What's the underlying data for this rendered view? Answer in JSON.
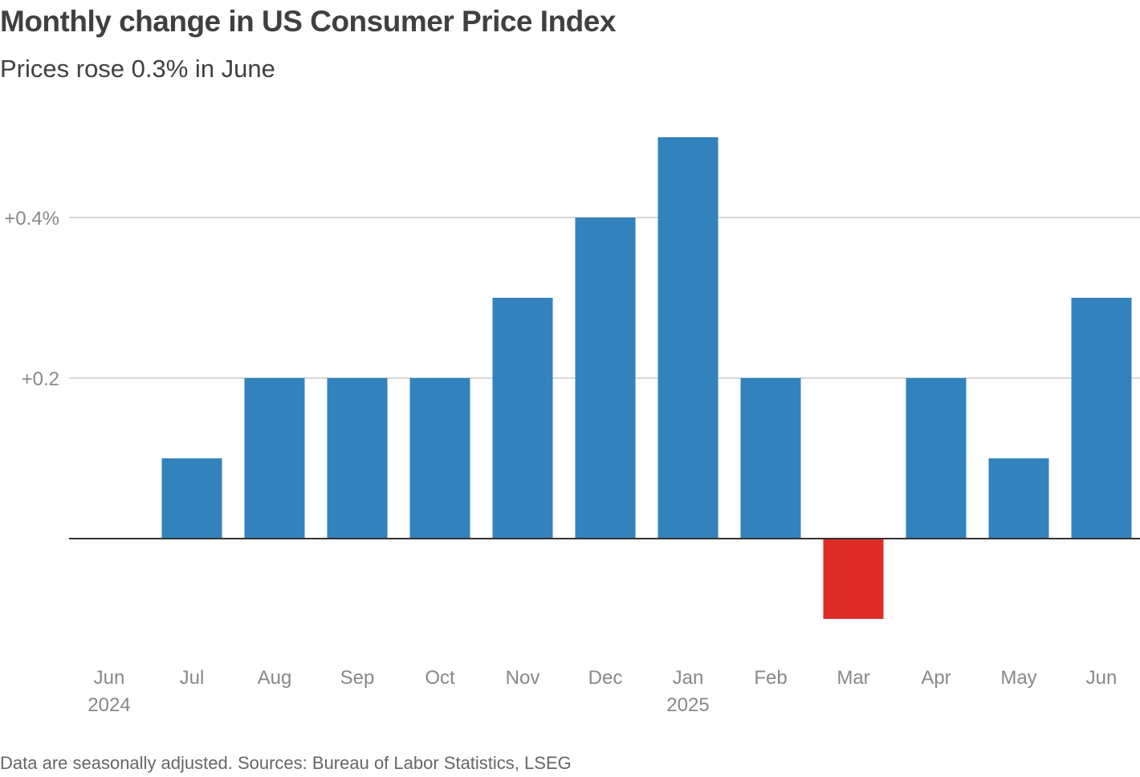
{
  "title": "Monthly change in US Consumer Price Index",
  "subtitle": "Prices rose 0.3% in June",
  "source": "Data are seasonally adjusted. Sources: Bureau of Labor Statistics, LSEG",
  "colors": {
    "positive": "#3282BD",
    "negative": "#DE2D26",
    "gridline": "#CCCCCC",
    "baseline": "#333333",
    "tick_text": "#888888"
  },
  "chart_data": {
    "type": "bar",
    "title": "Monthly change in US Consumer Price Index",
    "subtitle": "Prices rose 0.3% in June",
    "xlabel": "",
    "ylabel": "",
    "ylim": [
      -0.15,
      0.55
    ],
    "yticks": [
      {
        "value": 0.2,
        "label": "+0.2"
      },
      {
        "value": 0.4,
        "label": "+0.4%"
      }
    ],
    "categories": [
      "Jun",
      "Jul",
      "Aug",
      "Sep",
      "Oct",
      "Nov",
      "Dec",
      "Jan",
      "Feb",
      "Mar",
      "Apr",
      "May",
      "Jun"
    ],
    "year_labels": [
      "2024",
      "",
      "",
      "",
      "",
      "",
      "",
      "2025",
      "",
      "",
      "",
      "",
      ""
    ],
    "values": [
      0.0,
      0.1,
      0.2,
      0.2,
      0.2,
      0.3,
      0.4,
      0.5,
      0.2,
      -0.1,
      0.2,
      0.1,
      0.3
    ],
    "grid": true,
    "legend": "none"
  }
}
